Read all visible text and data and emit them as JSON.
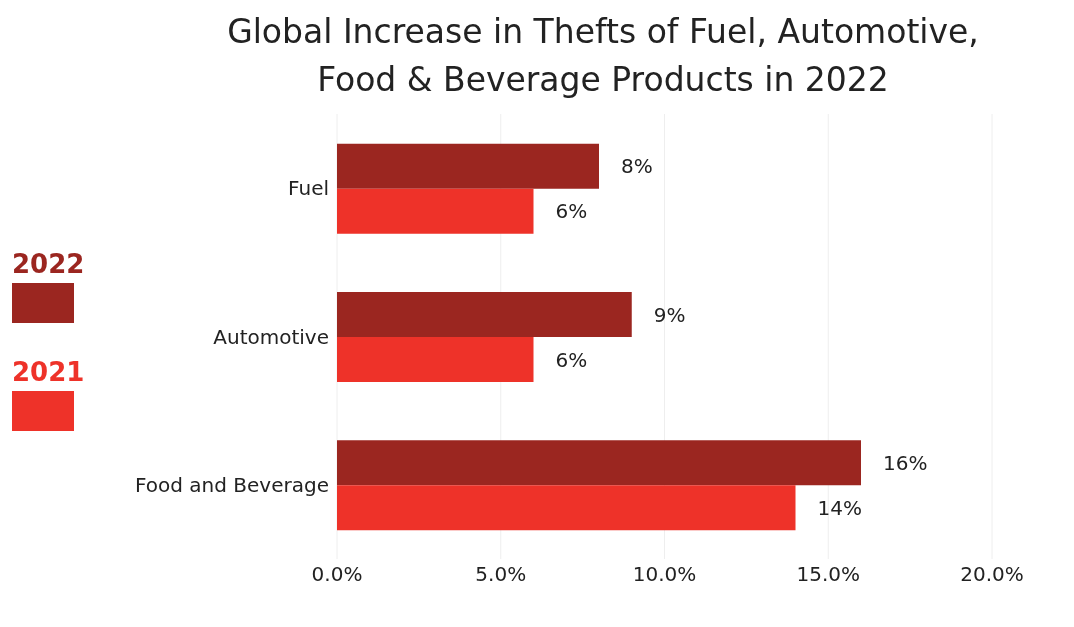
{
  "chart_data": {
    "type": "bar",
    "orientation": "horizontal",
    "title": "Global Increase in Thefts of Fuel, Automotive, Food & Beverage Products in 2022",
    "categories": [
      "Fuel",
      "Automotive",
      "Food and Beverage"
    ],
    "series": [
      {
        "name": "2022",
        "color": "#9b2620",
        "values": [
          8,
          9,
          16
        ],
        "value_labels": [
          "8%",
          "9%",
          "16%"
        ]
      },
      {
        "name": "2021",
        "color": "#ee3229",
        "values": [
          6,
          6,
          14
        ],
        "value_labels": [
          "6%",
          "6%",
          "14%"
        ]
      }
    ],
    "xlim": [
      0,
      20
    ],
    "xticks": [
      {
        "value": 0,
        "label": "0.0%"
      },
      {
        "value": 5,
        "label": "5.0%"
      },
      {
        "value": 10,
        "label": "10.0%"
      },
      {
        "value": 15,
        "label": "15.0%"
      },
      {
        "value": 20,
        "label": "20.0%"
      }
    ],
    "grid": "x",
    "legend": "left"
  }
}
